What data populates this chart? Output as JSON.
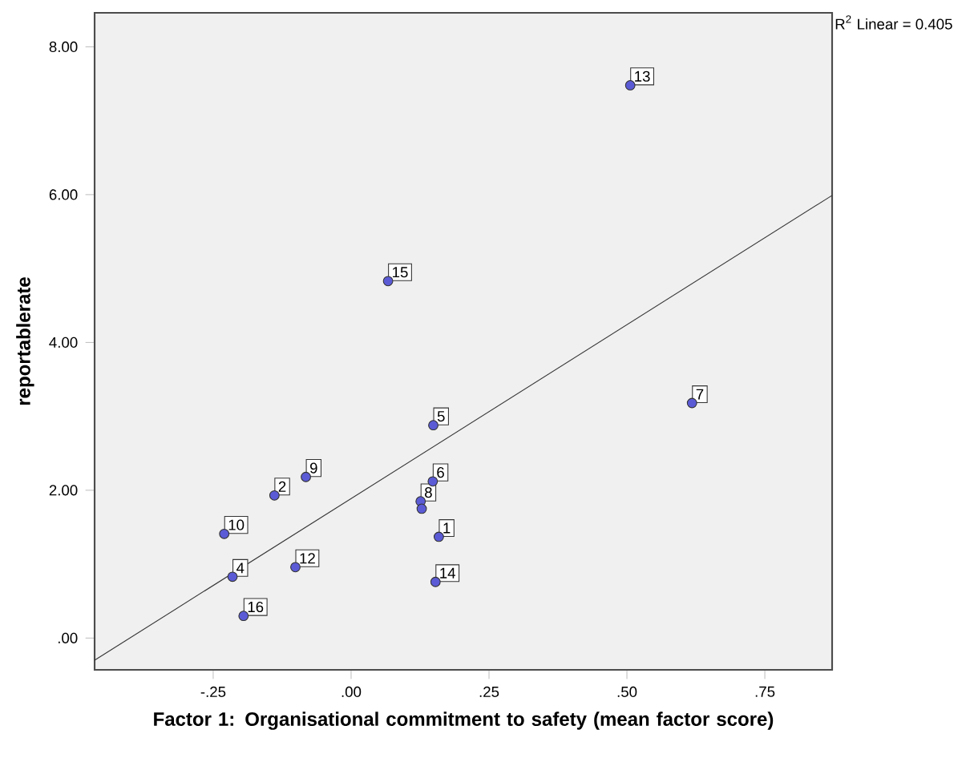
{
  "chart_data": {
    "type": "scatter",
    "xlabel": "Factor 1: Organisational commitment to safety (mean factor score)",
    "ylabel": "reportablerate",
    "xlim": [
      -0.465,
      0.872
    ],
    "ylim": [
      -0.43,
      8.46
    ],
    "xticks": [
      {
        "value": -0.25,
        "label": "-.25"
      },
      {
        "value": 0,
        "label": ".00"
      },
      {
        "value": 0.25,
        "label": ".25"
      },
      {
        "value": 0.5,
        "label": ".50"
      },
      {
        "value": 0.75,
        "label": ".75"
      }
    ],
    "yticks": [
      {
        "value": 0,
        "label": ".00"
      },
      {
        "value": 2,
        "label": "2.00"
      },
      {
        "value": 4,
        "label": "4.00"
      },
      {
        "value": 6,
        "label": "6.00"
      },
      {
        "value": 8,
        "label": "8.00"
      }
    ],
    "series": [
      {
        "marker": "circle",
        "color": "#5b5bd6",
        "x": [
          0.506,
          0.067,
          0.149,
          0.618,
          0.148,
          0.126,
          0.128,
          -0.082,
          -0.139,
          -0.23,
          -0.215,
          -0.101,
          -0.195,
          0.159,
          0.153
        ],
        "values": [
          7.48,
          4.83,
          2.88,
          3.18,
          2.12,
          1.85,
          1.75,
          2.18,
          1.93,
          1.41,
          0.83,
          0.96,
          0.3,
          1.37,
          0.76
        ]
      },
      {
        "type": "line",
        "color": "#333333",
        "x": [
          -0.465,
          0.872
        ],
        "values": [
          -0.3,
          5.99
        ]
      }
    ],
    "annotations": [
      "R$^{2}$ Linear = 0.405",
      {
        "text": "13",
        "x": 0.506,
        "y": 7.48
      },
      {
        "text": "15",
        "x": 0.067,
        "y": 4.83
      },
      {
        "text": "5",
        "x": 0.149,
        "y": 2.88
      },
      {
        "text": "7",
        "x": 0.618,
        "y": 3.18
      },
      {
        "text": "6",
        "x": 0.148,
        "y": 2.12
      },
      {
        "text": "8",
        "x": 0.126,
        "y": 1.85
      },
      {
        "text": "9",
        "x": -0.082,
        "y": 2.18
      },
      {
        "text": "2",
        "x": -0.139,
        "y": 1.93
      },
      {
        "text": "10",
        "x": -0.23,
        "y": 1.41
      },
      {
        "text": "4",
        "x": -0.215,
        "y": 0.83
      },
      {
        "text": "12",
        "x": -0.101,
        "y": 0.96
      },
      {
        "text": "16",
        "x": -0.195,
        "y": 0.3
      },
      {
        "text": "1",
        "x": 0.159,
        "y": 1.37
      },
      {
        "text": "14",
        "x": 0.153,
        "y": 0.76
      }
    ]
  }
}
